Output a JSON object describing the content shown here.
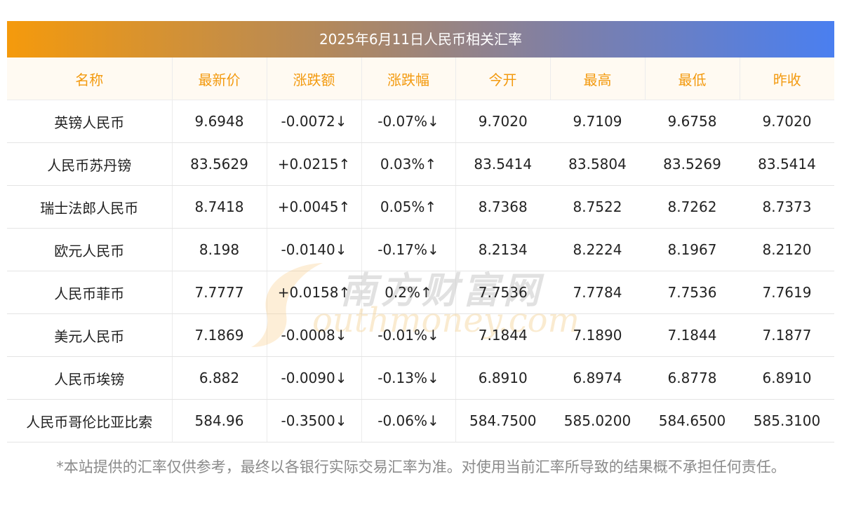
{
  "title": "2025年6月11日人民币相关汇率",
  "headers": [
    "名称",
    "最新价",
    "涨跌额",
    "涨跌幅",
    "今开",
    "最高",
    "最低",
    "昨收"
  ],
  "rows": [
    {
      "name": "英镑人民币",
      "latest": "9.6948",
      "change": "-0.0072↓",
      "pct": "-0.07%↓",
      "open": "9.7020",
      "high": "9.7109",
      "low": "9.6758",
      "prev": "9.7020",
      "direction": "down"
    },
    {
      "name": "人民币苏丹镑",
      "latest": "83.5629",
      "change": "+0.0215↑",
      "pct": "0.03%↑",
      "open": "83.5414",
      "high": "83.5804",
      "low": "83.5269",
      "prev": "83.5414",
      "direction": "up"
    },
    {
      "name": "瑞士法郎人民币",
      "latest": "8.7418",
      "change": "+0.0045↑",
      "pct": "0.05%↑",
      "open": "8.7368",
      "high": "8.7522",
      "low": "8.7262",
      "prev": "8.7373",
      "direction": "up"
    },
    {
      "name": "欧元人民币",
      "latest": "8.198",
      "change": "-0.0140↓",
      "pct": "-0.17%↓",
      "open": "8.2134",
      "high": "8.2224",
      "low": "8.1967",
      "prev": "8.2120",
      "direction": "down"
    },
    {
      "name": "人民币菲币",
      "latest": "7.7777",
      "change": "+0.0158↑",
      "pct": "0.2%↑",
      "open": "7.7536",
      "high": "7.7784",
      "low": "7.7536",
      "prev": "7.7619",
      "direction": "up"
    },
    {
      "name": "美元人民币",
      "latest": "7.1869",
      "change": "-0.0008↓",
      "pct": "-0.01%↓",
      "open": "7.1844",
      "high": "7.1890",
      "low": "7.1844",
      "prev": "7.1877",
      "direction": "down"
    },
    {
      "name": "人民币埃镑",
      "latest": "6.882",
      "change": "-0.0090↓",
      "pct": "-0.13%↓",
      "open": "6.8910",
      "high": "6.8974",
      "low": "6.8778",
      "prev": "6.8910",
      "direction": "down"
    },
    {
      "name": "人民币哥伦比亚比索",
      "latest": "584.96",
      "change": "-0.3500↓",
      "pct": "-0.06%↓",
      "open": "584.7500",
      "high": "585.0200",
      "low": "584.6500",
      "prev": "585.3100",
      "direction": "down"
    }
  ],
  "note": "*本站提供的汇率仅供参考，最终以各银行实际交易汇率为准。对使用当前汇率所导致的结果概不承担任何责任。",
  "watermark": {
    "cn": "南方财富网",
    "en": "outhmoney.com"
  },
  "colors": {
    "up": "#ee1111",
    "down": "#1f8a1f",
    "header_text": "#f39a0f",
    "title_gradient_start": "#f59a0c",
    "title_gradient_end": "#4a7ff0"
  }
}
